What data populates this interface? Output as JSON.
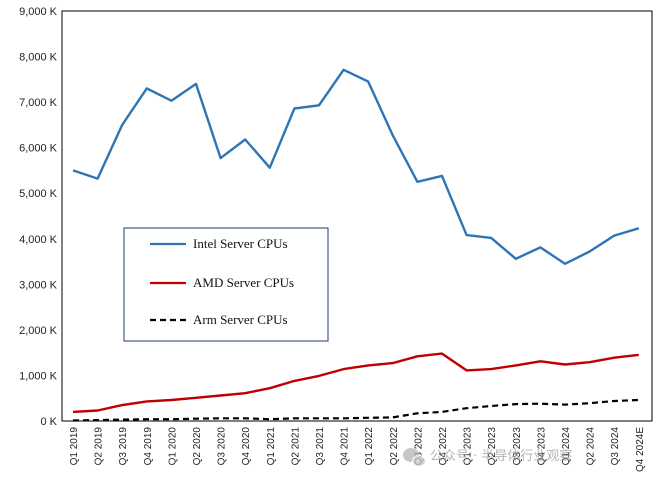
{
  "chart_data": {
    "type": "line",
    "title": "",
    "xlabel": "",
    "ylabel": "",
    "x": [
      "Q1 2019",
      "Q2 2019",
      "Q3 2019",
      "Q4 2019",
      "Q1 2020",
      "Q2 2020",
      "Q3 2020",
      "Q4 2020",
      "Q1 2021",
      "Q2 2021",
      "Q3 2021",
      "Q4 2021",
      "Q1 2022",
      "Q2 2022",
      "Q3 2022",
      "Q4 2022",
      "Q1 2023",
      "Q2 2023",
      "Q3 2023",
      "Q4 2023",
      "Q1 2024",
      "Q2 2024",
      "Q3 2024",
      "Q4 2024E"
    ],
    "ylim": [
      0,
      9000
    ],
    "y_ticks": [
      0,
      1000,
      2000,
      3000,
      4000,
      5000,
      6000,
      7000,
      8000,
      9000
    ],
    "y_tick_labels": [
      "0 K",
      "1,000 K",
      "2,000 K",
      "3,000 K",
      "4,000 K",
      "5,000 K",
      "6,000 K",
      "7,000 K",
      "8,000 K",
      "9,000 K"
    ],
    "grid": false,
    "legend_position": "left-middle",
    "series": [
      {
        "name": "Intel Server CPUs",
        "color": "#2e75b6",
        "style": "solid",
        "values": [
          5500,
          5320,
          6500,
          7300,
          7030,
          7400,
          5770,
          6180,
          5560,
          6860,
          6930,
          7710,
          7450,
          6270,
          5250,
          5380,
          4080,
          4020,
          3560,
          3810,
          3450,
          3720,
          4070,
          4230
        ]
      },
      {
        "name": "AMD Server CPUs",
        "color": "#c00000",
        "style": "solid",
        "values": [
          200,
          230,
          350,
          430,
          460,
          510,
          560,
          610,
          720,
          880,
          990,
          1140,
          1220,
          1270,
          1420,
          1480,
          1110,
          1140,
          1220,
          1310,
          1240,
          1290,
          1390,
          1450
        ]
      },
      {
        "name": "Arm Server CPUs",
        "color": "#000000",
        "style": "dashed",
        "values": [
          10,
          20,
          30,
          40,
          40,
          50,
          60,
          60,
          40,
          60,
          60,
          60,
          70,
          80,
          170,
          200,
          280,
          330,
          370,
          380,
          360,
          390,
          440,
          460
        ]
      }
    ]
  },
  "watermark": {
    "text": "公众号 · 半导体行业观察",
    "icon": "wechat-icon"
  }
}
